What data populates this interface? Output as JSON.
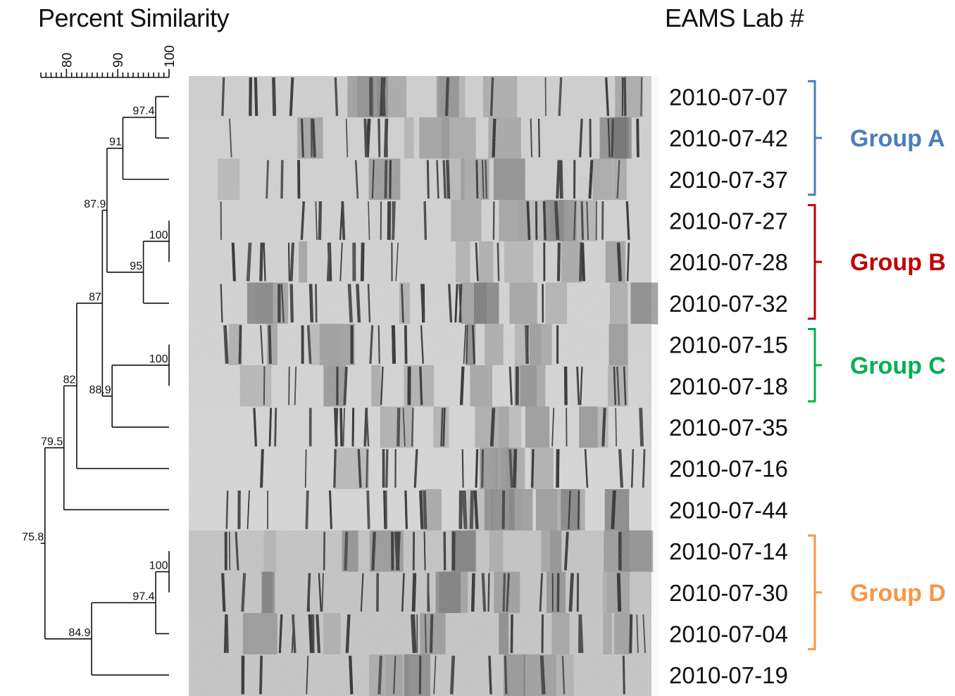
{
  "headers": {
    "similarity": "Percent Similarity",
    "lab": "EAMS Lab #"
  },
  "axis": {
    "min": 75,
    "max": 100,
    "ticks": [
      "80",
      "90",
      "100"
    ],
    "tick_values": [
      80,
      90,
      100
    ]
  },
  "samples": [
    "2010-07-07",
    "2010-07-42",
    "2010-07-37",
    "2010-07-27",
    "2010-07-28",
    "2010-07-32",
    "2010-07-15",
    "2010-07-18",
    "2010-07-35",
    "2010-07-16",
    "2010-07-44",
    "2010-07-14",
    "2010-07-30",
    "2010-07-04",
    "2010-07-19"
  ],
  "tree": {
    "sim": 75.8,
    "label": "75.8",
    "children": [
      {
        "sim": 79.5,
        "label": "79.5",
        "children": [
          {
            "sim": 82,
            "label": "82",
            "children": [
              {
                "sim": 87,
                "label": "87",
                "children": [
                  {
                    "sim": 87.9,
                    "label": "87.9",
                    "children": [
                      {
                        "sim": 91,
                        "label": "91",
                        "children": [
                          {
                            "sim": 97.4,
                            "label": "97.4",
                            "children": [
                              {
                                "leaf": 0
                              },
                              {
                                "leaf": 1
                              }
                            ]
                          },
                          {
                            "leaf": 2
                          }
                        ]
                      },
                      {
                        "sim": 95,
                        "label": "95",
                        "children": [
                          {
                            "sim": 100,
                            "label": "100",
                            "children": [
                              {
                                "leaf": 3
                              },
                              {
                                "leaf": 4
                              }
                            ]
                          },
                          {
                            "leaf": 5
                          }
                        ]
                      }
                    ]
                  },
                  {
                    "sim": 88.9,
                    "label": "88.9",
                    "children": [
                      {
                        "sim": 100,
                        "label": "100",
                        "children": [
                          {
                            "leaf": 6
                          },
                          {
                            "leaf": 7
                          }
                        ]
                      },
                      {
                        "leaf": 8
                      }
                    ]
                  }
                ]
              },
              {
                "leaf": 9
              }
            ]
          },
          {
            "leaf": 10
          }
        ]
      },
      {
        "sim": 84.9,
        "label": "84.9",
        "children": [
          {
            "sim": 97.4,
            "label": "97.4",
            "children": [
              {
                "sim": 100,
                "label": "100",
                "children": [
                  {
                    "leaf": 11
                  },
                  {
                    "leaf": 12
                  }
                ]
              },
              {
                "leaf": 13
              }
            ]
          },
          {
            "leaf": 14
          }
        ]
      }
    ]
  },
  "groups": [
    {
      "label": "Group A",
      "color": "#4a7ebb",
      "first": 0,
      "last": 2
    },
    {
      "label": "Group B",
      "color": "#c00000",
      "first": 3,
      "last": 5
    },
    {
      "label": "Group C",
      "color": "#00b050",
      "first": 6,
      "last": 7
    },
    {
      "label": "Group D",
      "color": "#f79646",
      "first": 11,
      "last": 13
    }
  ]
}
